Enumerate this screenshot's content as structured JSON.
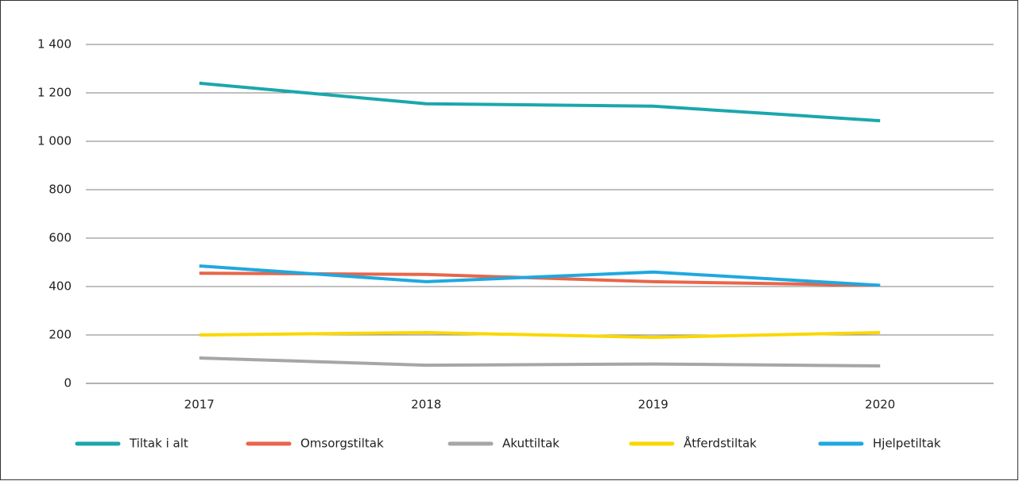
{
  "chart_data": {
    "type": "line",
    "categories": [
      "2017",
      "2018",
      "2019",
      "2020"
    ],
    "series": [
      {
        "name": "Tiltak i alt",
        "color": "#1aa7ac",
        "values": [
          1240,
          1155,
          1145,
          1085
        ]
      },
      {
        "name": "Omsorgstiltak",
        "color": "#e8664a",
        "values": [
          455,
          450,
          420,
          405
        ]
      },
      {
        "name": "Akuttiltak",
        "color": "#a6a6a6",
        "values": [
          105,
          75,
          80,
          72
        ]
      },
      {
        "name": "Åtferdstiltak",
        "color": "#fad700",
        "values": [
          200,
          210,
          190,
          210
        ]
      },
      {
        "name": "Hjelpetiltak",
        "color": "#1fa8e0",
        "values": [
          485,
          420,
          460,
          405
        ]
      }
    ],
    "ylim": [
      0,
      1400
    ],
    "yticks": [
      0,
      200,
      400,
      600,
      800,
      {
        "value": 1000,
        "label": "1 000"
      },
      {
        "value": 1200,
        "label": "1 200"
      },
      {
        "value": 1400,
        "label": "1 400"
      }
    ],
    "grid": true
  }
}
